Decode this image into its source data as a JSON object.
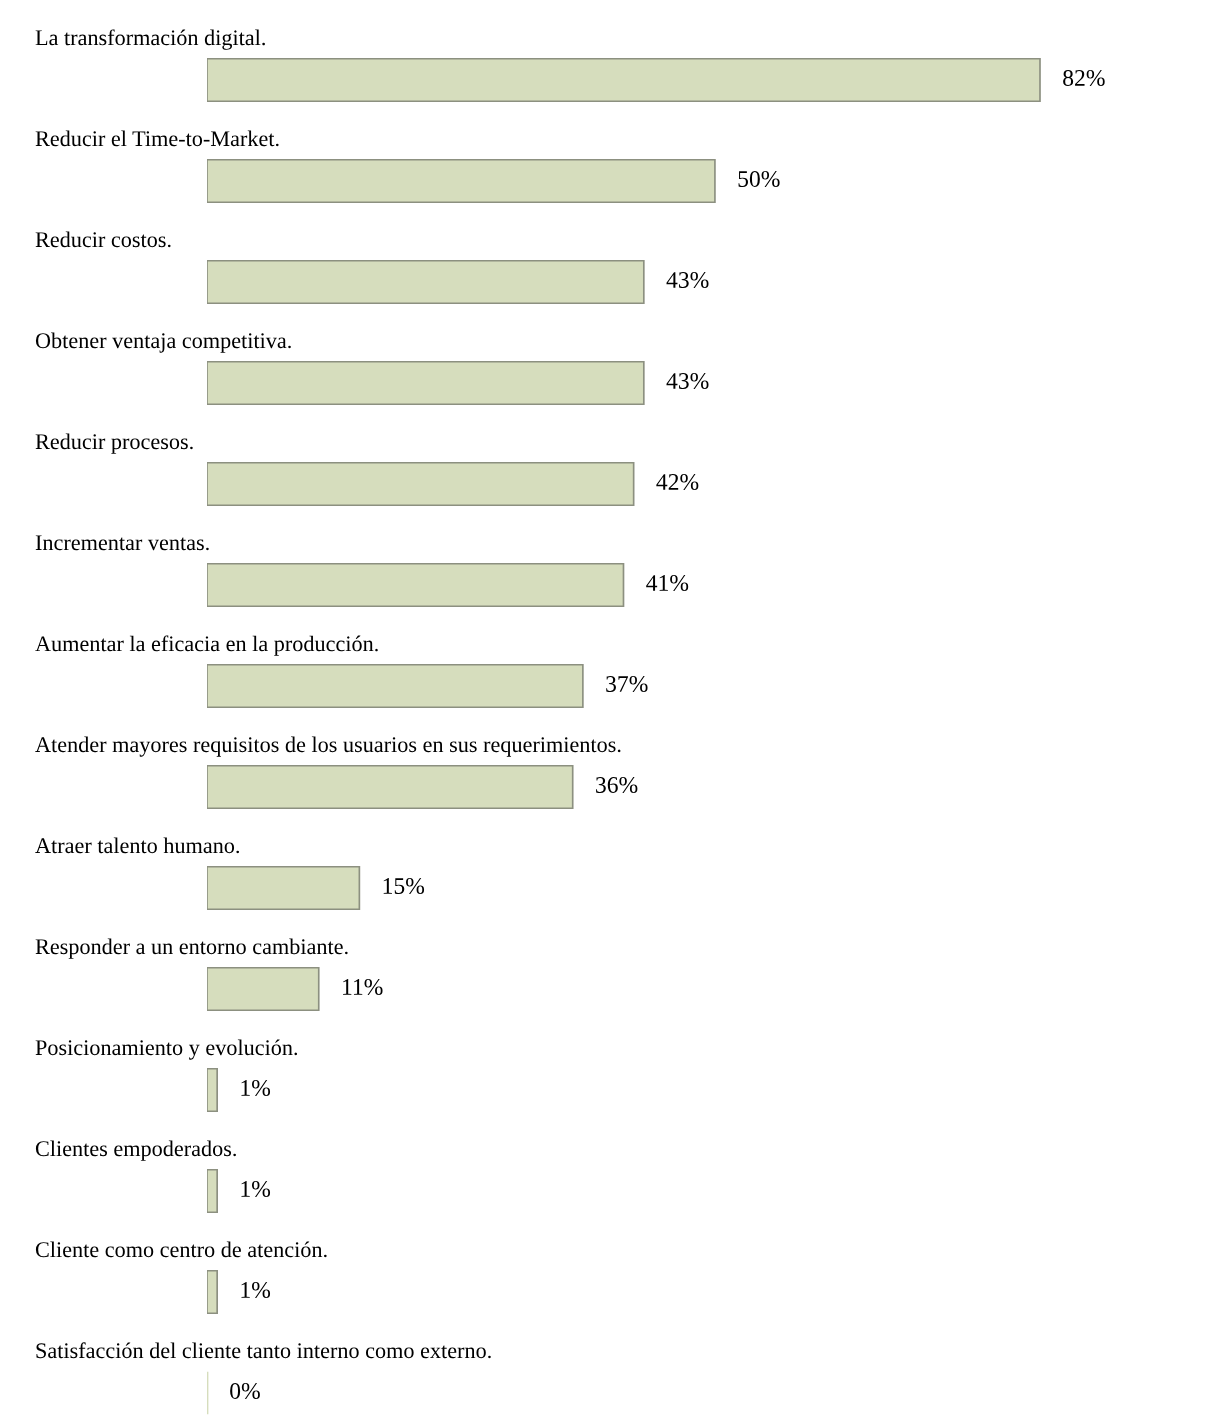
{
  "chart_data": {
    "type": "bar",
    "orientation": "horizontal",
    "categories": [
      "La transformación digital.",
      "Reducir el Time-to-Market.",
      "Reducir costos.",
      "Obtener ventaja competitiva.",
      "Reducir procesos.",
      "Incrementar ventas.",
      "Aumentar la eficacia en la producción.",
      "Atender mayores requisitos de los usuarios en sus requerimientos.",
      "Atraer talento humano.",
      "Responder a un entorno cambiante.",
      "Posicionamiento y evolución.",
      "Clientes empoderados.",
      "Cliente como centro de atención.",
      "Satisfacción del cliente tanto interno como externo."
    ],
    "values": [
      82,
      50,
      43,
      43,
      42,
      41,
      37,
      36,
      15,
      11,
      1,
      1,
      1,
      0
    ],
    "value_labels": [
      "82%",
      "50%",
      "43%",
      "43%",
      "42%",
      "41%",
      "37%",
      "36%",
      "15%",
      "11%",
      "1%",
      "1%",
      "1%",
      "0%"
    ],
    "color": "#d6ddbd"
  }
}
